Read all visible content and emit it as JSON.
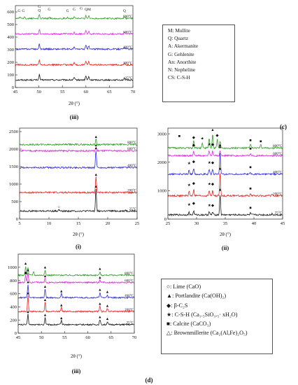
{
  "colors": {
    "25°C": "#1a1a1a",
    "200°C": "#e8231f",
    "400°C": "#2e2bd9",
    "600°C": "#e326e6",
    "800°C": "#2f9e26"
  },
  "legend_c": [
    "M: Mullite",
    "Q: Quartz",
    "A: Akermanite",
    "G: Gehlenite",
    "An: Anorthite",
    "N: Nepheline",
    "CS: C-S-H"
  ],
  "legend_d": [
    {
      "symbol": "○",
      "text": "Lime (CaO)"
    },
    {
      "symbol": "▲",
      "text": "Portlandite (Ca(OH)₂)"
    },
    {
      "symbol": "◆",
      "text": "β-C₂S"
    },
    {
      "symbol": "★",
      "text": "C-S-H (Ca₁.₅SiO₃.₅· xH₂O)"
    },
    {
      "symbol": "■",
      "text": "Calcite (CaCO₃)"
    },
    {
      "symbol": "△",
      "text": "Brownmillerite (Ca₂(Al,Fe)₂O₅)"
    }
  ],
  "panel_letters": {
    "c": "(c)",
    "d": "(d)"
  },
  "chart_data": [
    {
      "id": "c-iii",
      "type": "line",
      "subtitle": "(iii)",
      "xlabel": "2θ (°)",
      "ylabel": "",
      "xlim": [
        45,
        70
      ],
      "ylim": [
        0,
        650
      ],
      "xticks": [
        45,
        50,
        55,
        60,
        65,
        70
      ],
      "yticks": [
        0,
        100,
        200,
        300,
        400,
        500,
        600
      ],
      "series": [
        {
          "name": "25°C",
          "offset": 60,
          "amp": 1.0,
          "label": "25°C",
          "peaks": [
            [
              50.1,
              42
            ],
            [
              57.5,
              18
            ],
            [
              60.0,
              32
            ],
            [
              60.6,
              26
            ],
            [
              68.2,
              12
            ]
          ]
        },
        {
          "name": "200°C",
          "offset": 180,
          "amp": 1.0,
          "label": "200°C",
          "peaks": [
            [
              50.1,
              40
            ],
            [
              57.5,
              18
            ],
            [
              60.0,
              28
            ],
            [
              60.6,
              24
            ],
            [
              68.2,
              12
            ]
          ]
        },
        {
          "name": "400°C",
          "offset": 305,
          "amp": 1.0,
          "label": "400°C",
          "peaks": [
            [
              50.1,
              40
            ],
            [
              57.5,
              16
            ],
            [
              60.0,
              30
            ],
            [
              60.6,
              26
            ],
            [
              68.2,
              12
            ]
          ]
        },
        {
          "name": "600°C",
          "offset": 425,
          "amp": 1.0,
          "label": "600°C",
          "peaks": [
            [
              50.1,
              38
            ],
            [
              57.5,
              15
            ],
            [
              60.0,
              26
            ],
            [
              60.6,
              22
            ],
            [
              68.2,
              12
            ]
          ]
        },
        {
          "name": "800°C",
          "offset": 548,
          "amp": 1.0,
          "label": "800°C",
          "peaks": [
            [
              46.0,
              10
            ],
            [
              47.0,
              10
            ],
            [
              50.1,
              30
            ],
            [
              52.2,
              12
            ],
            [
              56.1,
              10
            ],
            [
              57.5,
              14
            ],
            [
              60.0,
              22
            ],
            [
              60.6,
              20
            ],
            [
              68.2,
              12
            ]
          ]
        }
      ],
      "annotations": [
        {
          "text": "G",
          "x": 45.8,
          "y": 600
        },
        {
          "text": "G",
          "x": 46.7,
          "y": 600
        },
        {
          "text": "G",
          "x": 50.1,
          "y": 632
        },
        {
          "text": "Q",
          "x": 50.1,
          "y": 602
        },
        {
          "text": "G",
          "x": 52.2,
          "y": 612
        },
        {
          "text": "G",
          "x": 56.1,
          "y": 600
        },
        {
          "text": "G",
          "x": 57.5,
          "y": 610
        },
        {
          "text": "G",
          "x": 59.0,
          "y": 620
        },
        {
          "text": "QM",
          "x": 60.4,
          "y": 612
        },
        {
          "text": "Q",
          "x": 68.2,
          "y": 600
        }
      ]
    },
    {
      "id": "d-i",
      "type": "line",
      "subtitle": "(i)",
      "xlabel": "2θ (°)",
      "ylabel": "",
      "xlim": [
        5,
        25
      ],
      "ylim": [
        0,
        2600
      ],
      "xticks": [
        5,
        10,
        15,
        20,
        25
      ],
      "yticks": [
        0,
        500,
        1000,
        1500,
        2000,
        2500
      ],
      "series": [
        {
          "name": "25°C",
          "offset": 230,
          "amp": 1.0,
          "label": "25°C",
          "peaks": [
            [
              11.7,
              40
            ],
            [
              18.0,
              640
            ],
            [
              23.0,
              30
            ]
          ]
        },
        {
          "name": "200°C",
          "offset": 760,
          "amp": 1.0,
          "label": "200°C",
          "peaks": [
            [
              18.0,
              450
            ]
          ]
        },
        {
          "name": "400°C",
          "offset": 1470,
          "amp": 1.0,
          "label": "400°C",
          "peaks": [
            [
              18.0,
              500
            ]
          ]
        },
        {
          "name": "600°C",
          "offset": 1950,
          "amp": 1.0,
          "label": "600°C",
          "peaks": [
            [
              18.0,
              95
            ]
          ]
        },
        {
          "name": "800°C",
          "offset": 2130,
          "amp": 1.0,
          "label": "800°C",
          "peaks": [
            [
              18.0,
              150
            ]
          ]
        }
      ],
      "annotations": [
        {
          "text": "▲",
          "x": 18.0,
          "y": 900
        },
        {
          "text": "▲",
          "x": 18.0,
          "y": 1240
        },
        {
          "text": "▲",
          "x": 18.0,
          "y": 2000
        },
        {
          "text": "▲",
          "x": 18.0,
          "y": 2080
        },
        {
          "text": "▲",
          "x": 18.0,
          "y": 2320
        },
        {
          "text": "○",
          "x": 11.7,
          "y": 310
        }
      ]
    },
    {
      "id": "d-ii",
      "type": "line",
      "subtitle": "(ii)",
      "xlabel": "2θ (°)",
      "ylabel": "",
      "xlim": [
        25,
        45
      ],
      "ylim": [
        0,
        3200
      ],
      "xticks": [
        25,
        30,
        35,
        40,
        45
      ],
      "yticks": [
        0,
        1000,
        2000,
        3000
      ],
      "series": [
        {
          "name": "25°C",
          "offset": 150,
          "amp": 1.0,
          "label": "25°C",
          "peaks": [
            [
              28.7,
              90
            ],
            [
              29.5,
              140
            ],
            [
              32.2,
              110
            ],
            [
              32.8,
              100
            ],
            [
              34.1,
              730
            ],
            [
              39.4,
              60
            ],
            [
              43.2,
              50
            ]
          ]
        },
        {
          "name": "200°C",
          "offset": 820,
          "amp": 1.0,
          "label": "200°C",
          "peaks": [
            [
              28.7,
              160
            ],
            [
              29.5,
              220
            ],
            [
              32.2,
              190
            ],
            [
              32.8,
              180
            ],
            [
              34.1,
              800
            ],
            [
              39.4,
              60
            ],
            [
              43.2,
              50
            ]
          ]
        },
        {
          "name": "400°C",
          "offset": 1580,
          "amp": 1.0,
          "label": "400°C",
          "peaks": [
            [
              28.7,
              160
            ],
            [
              29.5,
              220
            ],
            [
              32.2,
              190
            ],
            [
              32.8,
              180
            ],
            [
              34.1,
              760
            ],
            [
              39.4,
              60
            ]
          ]
        },
        {
          "name": "600°C",
          "offset": 2230,
          "amp": 1.0,
          "label": "600°C",
          "peaks": [
            [
              29.5,
              140
            ],
            [
              32.2,
              170
            ],
            [
              32.8,
              160
            ],
            [
              34.1,
              180
            ],
            [
              39.4,
              60
            ]
          ]
        },
        {
          "name": "800°C",
          "offset": 2500,
          "amp": 1.0,
          "label": "800°C",
          "peaks": [
            [
              29.5,
              260
            ],
            [
              31.0,
              200
            ],
            [
              32.2,
              360
            ],
            [
              32.8,
              480
            ],
            [
              33.6,
              320
            ],
            [
              34.1,
              260
            ],
            [
              39.4,
              150
            ],
            [
              41.2,
              110
            ]
          ]
        }
      ],
      "annotations": [
        {
          "text": "★",
          "x": 28.7,
          "y": 470
        },
        {
          "text": "◆",
          "x": 29.5,
          "y": 520
        },
        {
          "text": "★◆",
          "x": 32.5,
          "y": 440
        },
        {
          "text": "▲",
          "x": 34.1,
          "y": 1000
        },
        {
          "text": "■",
          "x": 39.4,
          "y": 360
        },
        {
          "text": "★",
          "x": 28.7,
          "y": 1160
        },
        {
          "text": "◆",
          "x": 29.5,
          "y": 1220
        },
        {
          "text": "★◆",
          "x": 32.5,
          "y": 1190
        },
        {
          "text": "▲",
          "x": 34.1,
          "y": 1740
        },
        {
          "text": "■",
          "x": 39.4,
          "y": 1030
        },
        {
          "text": "★",
          "x": 28.7,
          "y": 1920
        },
        {
          "text": "◆",
          "x": 29.5,
          "y": 1980
        },
        {
          "text": "★◆",
          "x": 32.5,
          "y": 1950
        },
        {
          "text": "▲",
          "x": 34.1,
          "y": 2500
        },
        {
          "text": "■",
          "x": 39.4,
          "y": 1790
        },
        {
          "text": "◆",
          "x": 29.5,
          "y": 2560
        },
        {
          "text": "★◆",
          "x": 32.5,
          "y": 2590
        },
        {
          "text": "▲",
          "x": 34.1,
          "y": 2560
        },
        {
          "text": "■",
          "x": 39.4,
          "y": 2440
        },
        {
          "text": "■",
          "x": 27.0,
          "y": 2880
        },
        {
          "text": "◆",
          "x": 29.5,
          "y": 2830
        },
        {
          "text": "★",
          "x": 31.0,
          "y": 2800
        },
        {
          "text": "▲",
          "x": 32.8,
          "y": 3100
        },
        {
          "text": "◆",
          "x": 33.6,
          "y": 2900
        },
        {
          "text": "■",
          "x": 39.4,
          "y": 2730
        },
        {
          "text": "■",
          "x": 41.2,
          "y": 2700
        }
      ]
    },
    {
      "id": "d-iii",
      "type": "line",
      "subtitle": "(iii)",
      "xlabel": "2θ (°)",
      "ylabel": "",
      "xlim": [
        45,
        70
      ],
      "ylim": [
        0,
        1200
      ],
      "xticks": [
        45,
        50,
        55,
        60,
        65,
        70
      ],
      "yticks": [
        0,
        200,
        400,
        600,
        800,
        1000
      ],
      "series": [
        {
          "name": "25°C",
          "offset": 130,
          "amp": 1.0,
          "label": "25°C",
          "peaks": [
            [
              47.1,
              160
            ],
            [
              50.8,
              110
            ],
            [
              54.3,
              60
            ],
            [
              62.6,
              80
            ],
            [
              64.2,
              45
            ]
          ]
        },
        {
          "name": "200°C",
          "offset": 330,
          "amp": 1.0,
          "label": "200°C",
          "peaks": [
            [
              47.1,
              240
            ],
            [
              50.8,
              140
            ],
            [
              54.3,
              60
            ],
            [
              62.6,
              80
            ],
            [
              64.2,
              45
            ]
          ]
        },
        {
          "name": "400°C",
          "offset": 540,
          "amp": 1.0,
          "label": "400°C",
          "peaks": [
            [
              47.1,
              200
            ],
            [
              50.8,
              130
            ],
            [
              54.3,
              60
            ],
            [
              62.6,
              80
            ],
            [
              64.2,
              45
            ]
          ]
        },
        {
          "name": "600°C",
          "offset": 770,
          "amp": 1.0,
          "label": "600°C",
          "peaks": [
            [
              46.6,
              110
            ],
            [
              47.1,
              150
            ],
            [
              50.8,
              60
            ],
            [
              62.6,
              40
            ]
          ]
        },
        {
          "name": "800°C",
          "offset": 880,
          "amp": 1.0,
          "label": "800°C",
          "peaks": [
            [
              46.6,
              130
            ],
            [
              47.1,
              120
            ],
            [
              48.3,
              60
            ],
            [
              50.8,
              70
            ],
            [
              62.6,
              50
            ]
          ]
        }
      ],
      "annotations": [
        {
          "text": "▲",
          "x": 47.1,
          "y": 310
        },
        {
          "text": "▲",
          "x": 50.8,
          "y": 260
        },
        {
          "text": "▲",
          "x": 54.3,
          "y": 210
        },
        {
          "text": "▲",
          "x": 62.6,
          "y": 230
        },
        {
          "text": "▲",
          "x": 64.2,
          "y": 200
        },
        {
          "text": "▲",
          "x": 47.1,
          "y": 590
        },
        {
          "text": "▲",
          "x": 50.8,
          "y": 490
        },
        {
          "text": "▲",
          "x": 54.3,
          "y": 410
        },
        {
          "text": "▲",
          "x": 62.6,
          "y": 430
        },
        {
          "text": "▲",
          "x": 64.2,
          "y": 400
        },
        {
          "text": "▲",
          "x": 47.1,
          "y": 760
        },
        {
          "text": "▲",
          "x": 50.8,
          "y": 690
        },
        {
          "text": "▲",
          "x": 54.3,
          "y": 620
        },
        {
          "text": "▲",
          "x": 62.6,
          "y": 640
        },
        {
          "text": "▲",
          "x": 64.2,
          "y": 610
        },
        {
          "text": "◆",
          "x": 46.6,
          "y": 900
        },
        {
          "text": "▲",
          "x": 47.1,
          "y": 940
        },
        {
          "text": "▲",
          "x": 50.8,
          "y": 850
        },
        {
          "text": "▲",
          "x": 62.6,
          "y": 830
        },
        {
          "text": "▲",
          "x": 46.6,
          "y": 1040
        },
        {
          "text": "▲",
          "x": 50.8,
          "y": 980
        },
        {
          "text": "▲",
          "x": 62.6,
          "y": 960
        }
      ]
    }
  ]
}
